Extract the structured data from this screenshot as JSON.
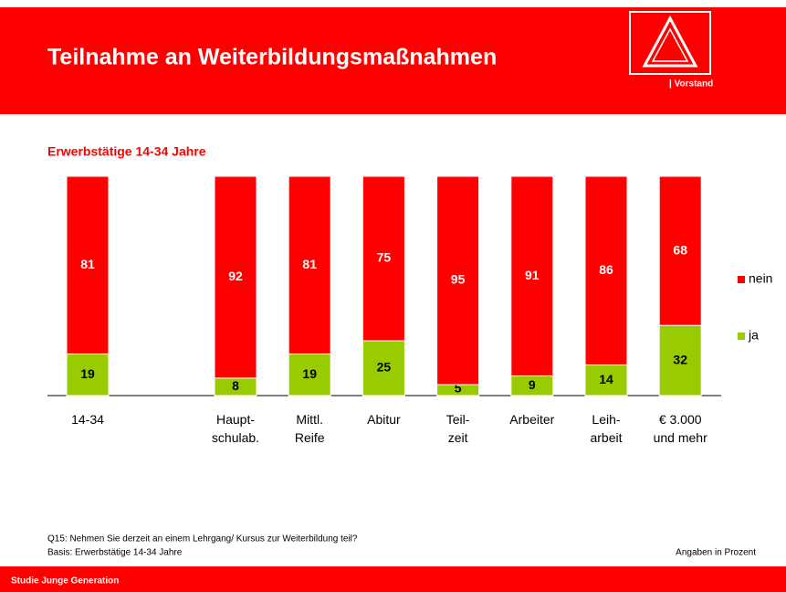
{
  "header": {
    "title": "Teilnahme an Weiterbildungsmaßnahmen",
    "org": "| Vorstand"
  },
  "chart_data": {
    "type": "stacked_bar",
    "subtitle": "Erwerbstätige 14-34 Jahre",
    "categories": [
      "14-34",
      "Haupt-\nschulab.",
      "Mittl.\nReife",
      "Abitur",
      "Teil-\nzeit",
      "Arbeiter",
      "Leih-\narbeit",
      "€ 3.000\nund mehr"
    ],
    "series": [
      {
        "name": "ja",
        "color": "#99cc00",
        "values": [
          19,
          8,
          19,
          25,
          5,
          9,
          14,
          32
        ]
      },
      {
        "name": "nein",
        "color": "#ff0000",
        "values": [
          81,
          92,
          81,
          75,
          95,
          91,
          86,
          68
        ]
      }
    ],
    "ylim": [
      0,
      100
    ]
  },
  "notes": [
    "Q15: Nehmen Sie derzeit an einem Lehrgang/ Kursus zur Weiterbildung teil?",
    "Basis: Erwerbstätige 14-34 Jahre"
  ],
  "unit_note": "Angaben in Prozent",
  "footer": "Studie Junge Generation"
}
